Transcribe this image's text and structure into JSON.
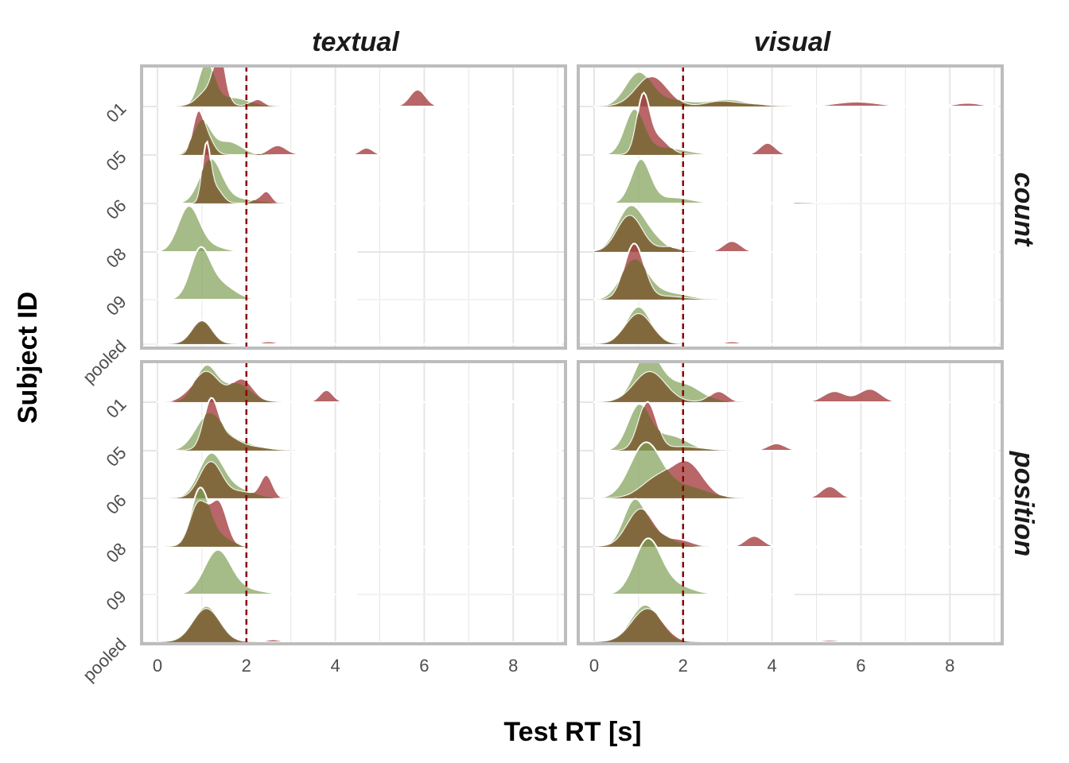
{
  "chart_data": {
    "type": "area",
    "subtype": "ridgeline-density",
    "xlabel": "Test RT [s]",
    "ylabel": "Subject ID",
    "x_ticks": [
      0,
      2,
      4,
      6,
      8
    ],
    "xlim": [
      -0.35,
      9.2
    ],
    "subjects": [
      "pooled",
      "09",
      "08",
      "06",
      "05",
      "01"
    ],
    "column_facets": [
      "textual",
      "visual"
    ],
    "row_facets": [
      "count",
      "position"
    ],
    "reference_line": {
      "x": 2,
      "style": "dashed",
      "color": "#8b0000"
    },
    "colors": {
      "red_series": "#a84447",
      "green_series": "#809f55",
      "overlap": "#7f6a3c",
      "frame": "#bdbdbd",
      "grid": "#e6e6e6"
    },
    "panels": [
      {
        "column": "textual",
        "row": "count",
        "ridges": [
          {
            "subject": "pooled",
            "red": [
              [
                1.0,
                0.38,
                0.22
              ]
            ],
            "green": [
              [
                1.0,
                0.4,
                0.24
              ]
            ],
            "red_tail": [
              [
                2.5,
                0.04,
                0.15
              ]
            ]
          },
          {
            "subject": "09",
            "red": [],
            "green": [
              [
                0.95,
                0.72,
                0.22
              ],
              [
                1.35,
                0.28,
                0.35
              ]
            ],
            "red_tail": [
              [
                3.1,
                0.02,
                0.15
              ]
            ]
          },
          {
            "subject": "08",
            "red": [],
            "green": [
              [
                0.7,
                0.72,
                0.24
              ],
              [
                1.15,
                0.1,
                0.35
              ]
            ],
            "red_tail": []
          },
          {
            "subject": "06",
            "red": [
              [
                1.1,
                0.92,
                0.09
              ],
              [
                1.3,
                0.25,
                0.15
              ],
              [
                2.45,
                0.2,
                0.12
              ],
              [
                2.2,
                0.05,
                0.1
              ]
            ],
            "green": [
              [
                1.2,
                0.72,
                0.25
              ],
              [
                1.8,
                0.08,
                0.4
              ]
            ],
            "red_tail": []
          },
          {
            "subject": "05",
            "red": [
              [
                0.9,
                0.6,
                0.12
              ],
              [
                1.1,
                0.3,
                0.15
              ],
              [
                2.7,
                0.16,
                0.2
              ],
              [
                4.7,
                0.12,
                0.15
              ],
              [
                3.5,
                0.02,
                0.3
              ]
            ],
            "green": [
              [
                1.0,
                0.55,
                0.2
              ],
              [
                1.6,
                0.22,
                0.3
              ]
            ],
            "red_tail": []
          },
          {
            "subject": "01",
            "red": [
              [
                1.4,
                0.75,
                0.12
              ],
              [
                1.2,
                0.3,
                0.25
              ],
              [
                2.25,
                0.12,
                0.15
              ],
              [
                5.85,
                0.28,
                0.18
              ],
              [
                4.7,
                0.02,
                0.2
              ]
            ],
            "green": [
              [
                1.1,
                0.72,
                0.18
              ],
              [
                1.7,
                0.15,
                0.35
              ]
            ],
            "red_tail": []
          }
        ]
      },
      {
        "column": "visual",
        "row": "count",
        "ridges": [
          {
            "subject": "pooled",
            "red": [
              [
                1.0,
                0.5,
                0.3
              ]
            ],
            "green": [
              [
                1.0,
                0.62,
                0.28
              ]
            ],
            "red_tail": [
              [
                3.1,
                0.04,
                0.15
              ]
            ]
          },
          {
            "subject": "09",
            "red": [
              [
                0.9,
                0.92,
                0.22
              ],
              [
                1.6,
                0.05,
                0.4
              ]
            ],
            "green": [
              [
                0.9,
                0.62,
                0.3
              ],
              [
                1.6,
                0.12,
                0.5
              ]
            ],
            "red_tail": []
          },
          {
            "subject": "08",
            "red": [
              [
                0.8,
                0.6,
                0.28
              ],
              [
                1.7,
                0.08,
                0.25
              ],
              [
                3.1,
                0.18,
                0.2
              ]
            ],
            "green": [
              [
                0.8,
                0.72,
                0.3
              ],
              [
                1.3,
                0.2,
                0.3
              ]
            ],
            "red_tail": []
          },
          {
            "subject": "06",
            "red": [],
            "green": [
              [
                1.05,
                0.72,
                0.22
              ],
              [
                1.8,
                0.1,
                0.4
              ]
            ],
            "red_tail": [
              [
                4.5,
                0.02,
                0.5
              ]
            ]
          },
          {
            "subject": "05",
            "red": [
              [
                1.1,
                0.88,
                0.14
              ],
              [
                1.4,
                0.3,
                0.25
              ],
              [
                3.9,
                0.2,
                0.18
              ]
            ],
            "green": [
              [
                0.9,
                0.72,
                0.22
              ],
              [
                1.6,
                0.12,
                0.5
              ]
            ],
            "red_tail": []
          },
          {
            "subject": "01",
            "red": [
              [
                1.3,
                0.5,
                0.35
              ],
              [
                2.8,
                0.07,
                0.3
              ],
              [
                5.9,
                0.08,
                0.5
              ],
              [
                8.4,
                0.06,
                0.3
              ],
              [
                3.4,
                0.04,
                0.4
              ]
            ],
            "green": [
              [
                1.0,
                0.56,
                0.3
              ],
              [
                3.0,
                0.12,
                0.45
              ],
              [
                1.8,
                0.1,
                0.4
              ]
            ],
            "red_tail": []
          }
        ]
      },
      {
        "column": "textual",
        "row": "position",
        "ridges": [
          {
            "subject": "pooled",
            "red": [
              [
                1.1,
                0.55,
                0.3
              ]
            ],
            "green": [
              [
                1.1,
                0.6,
                0.3
              ]
            ],
            "red_tail": [
              [
                2.6,
                0.04,
                0.15
              ]
            ]
          },
          {
            "subject": "09",
            "red": [],
            "green": [
              [
                1.35,
                0.72,
                0.3
              ],
              [
                2.0,
                0.08,
                0.4
              ]
            ],
            "red_tail": [
              [
                3.0,
                0.01,
                0.3
              ]
            ]
          },
          {
            "subject": "08",
            "red": [
              [
                0.9,
                0.5,
                0.18
              ],
              [
                1.4,
                0.6,
                0.18
              ],
              [
                1.1,
                0.3,
                0.25
              ]
            ],
            "green": [
              [
                0.95,
                0.88,
                0.2
              ],
              [
                1.3,
                0.2,
                0.3
              ]
            ],
            "red_tail": []
          },
          {
            "subject": "06",
            "red": [
              [
                1.2,
                0.6,
                0.25
              ],
              [
                2.45,
                0.38,
                0.14
              ],
              [
                1.9,
                0.1,
                0.25
              ]
            ],
            "green": [
              [
                1.2,
                0.72,
                0.28
              ],
              [
                1.8,
                0.15,
                0.35
              ]
            ],
            "red_tail": []
          },
          {
            "subject": "05",
            "red": [
              [
                1.2,
                0.72,
                0.16
              ],
              [
                1.5,
                0.25,
                0.3
              ],
              [
                2.2,
                0.05,
                0.3
              ]
            ],
            "green": [
              [
                1.15,
                0.58,
                0.3
              ],
              [
                1.8,
                0.15,
                0.4
              ]
            ],
            "red_tail": []
          },
          {
            "subject": "01",
            "red": [
              [
                1.1,
                0.5,
                0.28
              ],
              [
                1.9,
                0.38,
                0.25
              ],
              [
                3.8,
                0.2,
                0.15
              ],
              [
                0.6,
                0.05,
                0.2
              ],
              [
                8.0,
                0.02,
                0.3
              ]
            ],
            "green": [
              [
                1.1,
                0.6,
                0.25
              ],
              [
                1.8,
                0.3,
                0.3
              ]
            ],
            "red_tail": []
          }
        ]
      },
      {
        "column": "visual",
        "row": "position",
        "ridges": [
          {
            "subject": "pooled",
            "red": [
              [
                1.2,
                0.55,
                0.35
              ]
            ],
            "green": [
              [
                1.15,
                0.62,
                0.33
              ]
            ],
            "red_tail": [
              [
                5.3,
                0.03,
                0.2
              ]
            ]
          },
          {
            "subject": "09",
            "red": [],
            "green": [
              [
                1.2,
                0.88,
                0.3
              ],
              [
                1.8,
                0.15,
                0.4
              ]
            ],
            "red_tail": []
          },
          {
            "subject": "08",
            "red": [
              [
                1.05,
                0.62,
                0.3
              ],
              [
                1.9,
                0.12,
                0.3
              ],
              [
                3.6,
                0.18,
                0.2
              ]
            ],
            "green": [
              [
                0.9,
                0.72,
                0.25
              ],
              [
                1.4,
                0.2,
                0.35
              ]
            ],
            "red_tail": []
          },
          {
            "subject": "06",
            "red": [
              [
                2.1,
                0.58,
                0.35
              ],
              [
                1.4,
                0.3,
                0.35
              ],
              [
                5.3,
                0.2,
                0.2
              ]
            ],
            "green": [
              [
                1.15,
                0.88,
                0.35
              ],
              [
                2.0,
                0.2,
                0.5
              ]
            ],
            "red_tail": []
          },
          {
            "subject": "05",
            "red": [
              [
                1.2,
                0.8,
                0.2
              ],
              [
                4.1,
                0.12,
                0.2
              ],
              [
                2.0,
                0.06,
                0.4
              ]
            ],
            "green": [
              [
                1.0,
                0.72,
                0.25
              ],
              [
                1.7,
                0.25,
                0.4
              ]
            ],
            "red_tail": []
          },
          {
            "subject": "01",
            "red": [
              [
                1.25,
                0.5,
                0.35
              ],
              [
                2.8,
                0.18,
                0.2
              ],
              [
                5.4,
                0.18,
                0.25
              ],
              [
                6.2,
                0.22,
                0.25
              ]
            ],
            "green": [
              [
                1.2,
                0.8,
                0.3
              ],
              [
                2.0,
                0.3,
                0.4
              ]
            ],
            "red_tail": []
          }
        ]
      }
    ]
  }
}
